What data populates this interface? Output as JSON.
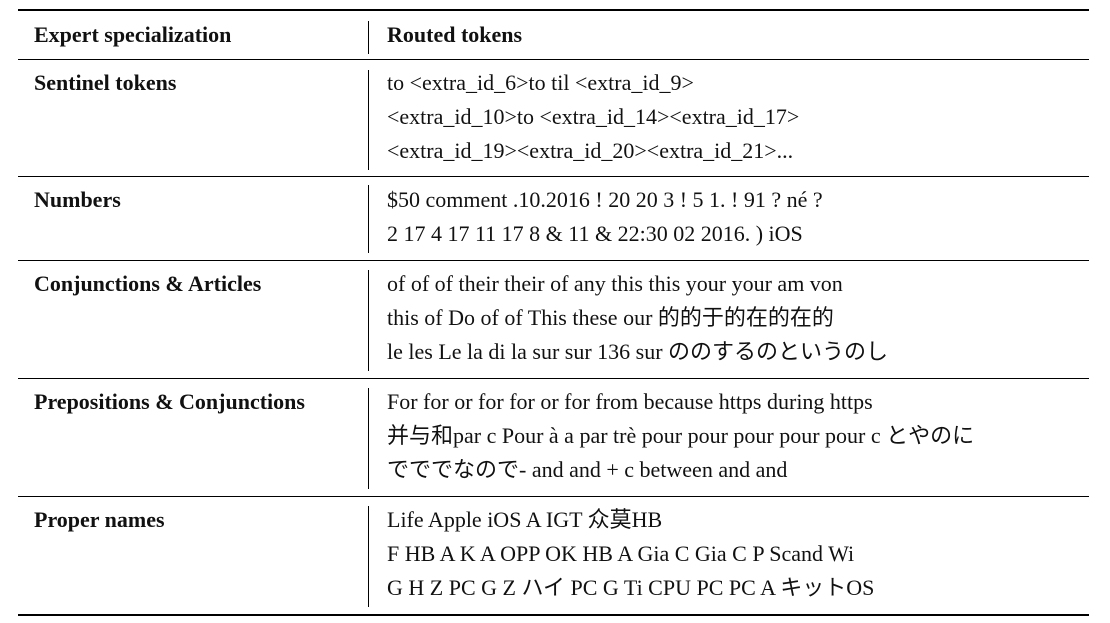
{
  "header": {
    "col1": "Expert specialization",
    "col2": "Routed tokens"
  },
  "rows": [
    {
      "label": "Sentinel tokens",
      "lines": [
        "to <extra_id_6>to til <extra_id_9>",
        "<extra_id_10>to <extra_id_14><extra_id_17>",
        "<extra_id_19><extra_id_20><extra_id_21>..."
      ]
    },
    {
      "label": "Numbers",
      "lines": [
        "$50 comment .10.2016 ! 20 20 3 ! 5 1. ! 91 ? né ?",
        "2 17 4 17 11 17 8 & 11 & 22:30 02 2016. ) iOS"
      ]
    },
    {
      "label": "Conjunctions & Articles",
      "lines": [
        "of of of their their of any this this your your am von",
        "this of Do of of This these our 的的于的在的在的",
        "le les Le la di la sur sur 136 sur ののするのというのし"
      ]
    },
    {
      "label": "Prepositions & Conjunctions",
      "lines": [
        "For for or for for or for from because https during https",
        "并与和par c Pour à a par trè pour pour pour pour pour c とやのに",
        "でででなので- and and + c between and and"
      ]
    },
    {
      "label": "Proper names",
      "lines": [
        "Life Apple iOS A IGT 众莫HB",
        "F HB A K A OPP OK HB A Gia C Gia C P Scand Wi",
        "G H Z PC G Z ハイ PC G Ti CPU PC PC A キットOS"
      ]
    }
  ]
}
